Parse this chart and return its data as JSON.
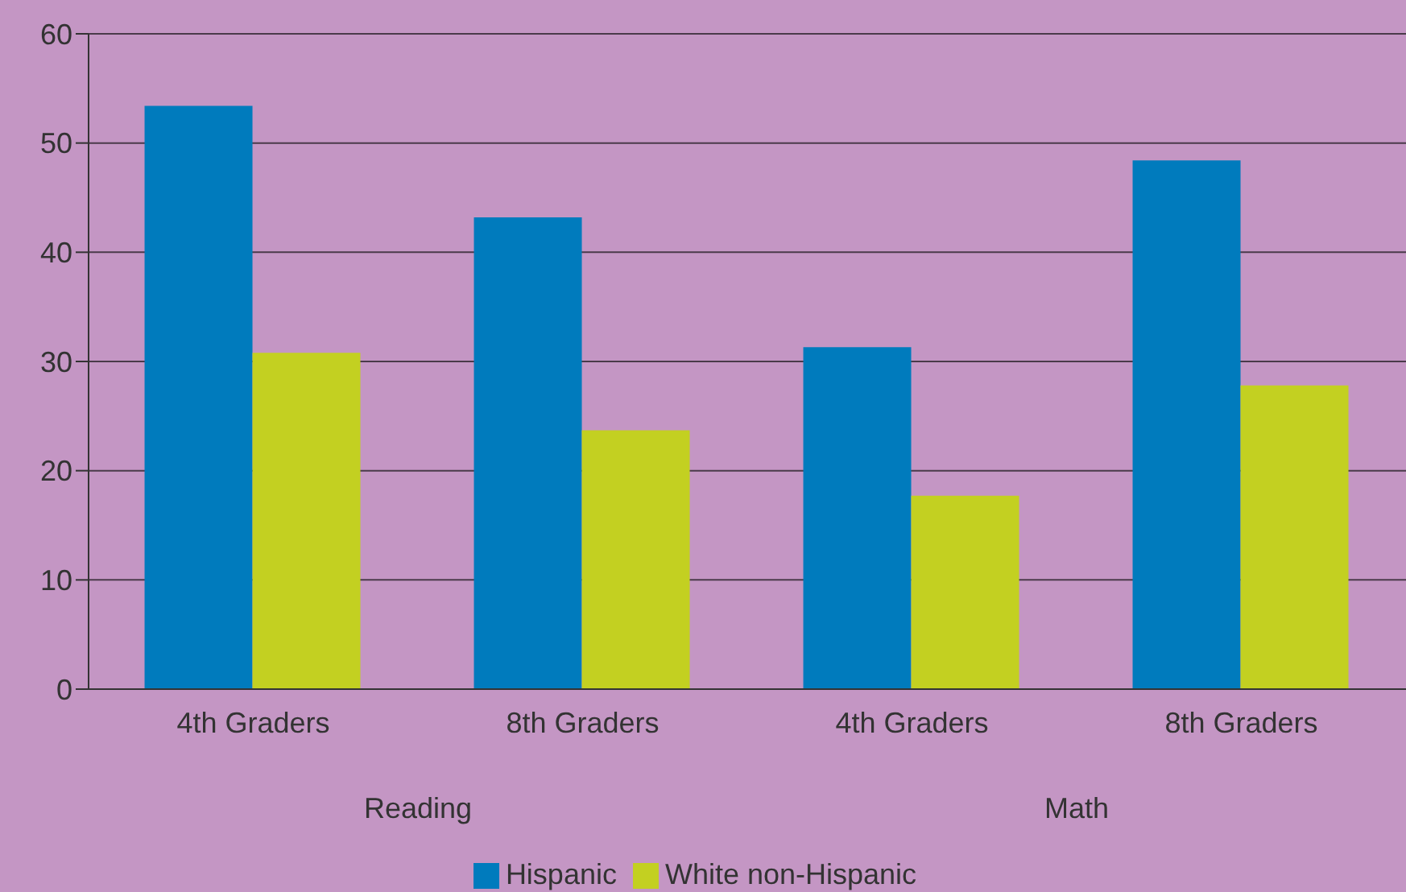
{
  "chart_data": {
    "type": "bar",
    "categories": [
      "4th Graders",
      "8th Graders",
      "4th Graders",
      "8th Graders"
    ],
    "series": [
      {
        "name": "Hispanic",
        "color": "#007bbd",
        "values": [
          53.4,
          43.2,
          31.3,
          48.4
        ]
      },
      {
        "name": "White non-Hispanic",
        "color": "#c3d021",
        "values": [
          30.8,
          23.7,
          17.7,
          27.8
        ]
      }
    ],
    "annotations": [
      "Reading",
      "Math"
    ],
    "ylim": [
      0,
      60
    ],
    "yticks": [
      0,
      10,
      20,
      30,
      40,
      50,
      60
    ],
    "grid": "y",
    "legend": "bottom"
  }
}
